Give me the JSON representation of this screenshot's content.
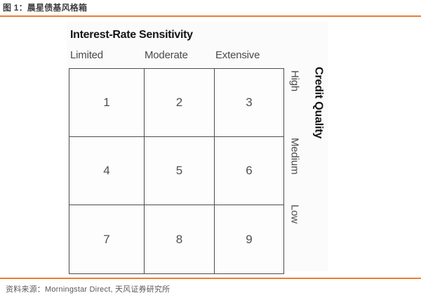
{
  "header": {
    "figure_caption": "图 1：晨星债基风格箱"
  },
  "footer": {
    "source": "资料来源：Morningstar Direct, 天风证券研究所"
  },
  "style_box": {
    "column_axis_title": "Interest-Rate Sensitivity",
    "column_labels": [
      "Limited",
      "Moderate",
      "Extensive"
    ],
    "row_axis_title": "Credit Quality",
    "row_labels": [
      "High",
      "Medium",
      "Low"
    ],
    "cells": [
      "1",
      "2",
      "3",
      "4",
      "5",
      "6",
      "7",
      "8",
      "9"
    ]
  },
  "colors": {
    "accent_orange": "#ed7d31",
    "grid_line": "#4d4d4d",
    "label_gray": "#4a4a4a",
    "heading_black": "#141414",
    "source_gray": "#595959"
  },
  "chart_data": {
    "type": "table",
    "title": "晨星债基风格箱",
    "column_axis": "Interest-Rate Sensitivity",
    "columns": [
      "Limited",
      "Moderate",
      "Extensive"
    ],
    "row_axis": "Credit Quality",
    "rows": [
      "High",
      "Medium",
      "Low"
    ],
    "values": [
      [
        1,
        2,
        3
      ],
      [
        4,
        5,
        6
      ],
      [
        7,
        8,
        9
      ]
    ]
  }
}
